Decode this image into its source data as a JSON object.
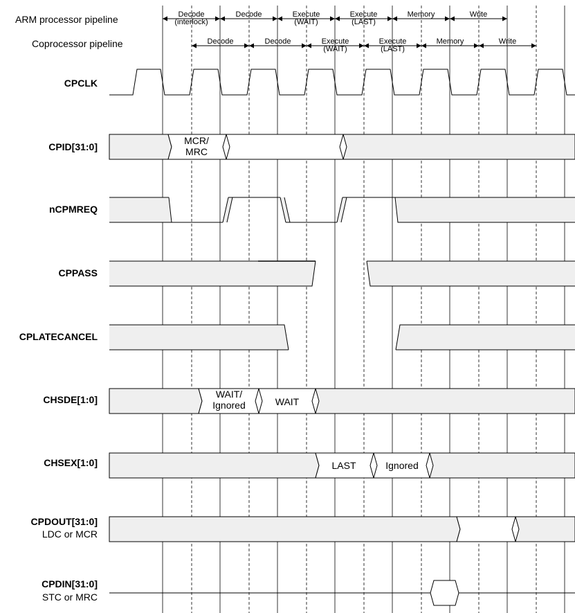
{
  "pipelines": [
    {
      "label": "ARM processor pipeline",
      "stages": [
        {
          "text": "Decode",
          "text2": "(interlock)"
        },
        {
          "text": "Decode",
          "text2": ""
        },
        {
          "text": "Execute",
          "text2": "(WAIT)"
        },
        {
          "text": "Execute",
          "text2": "(LAST)"
        },
        {
          "text": "Memory",
          "text2": ""
        },
        {
          "text": "Write",
          "text2": ""
        }
      ]
    },
    {
      "label": "Coprocessor pipeline",
      "stages": [
        {
          "text": "Decode",
          "text2": ""
        },
        {
          "text": "Decode",
          "text2": ""
        },
        {
          "text": "Execute",
          "text2": "(WAIT)"
        },
        {
          "text": "Execute",
          "text2": "(LAST)"
        },
        {
          "text": "Memory",
          "text2": ""
        },
        {
          "text": "Write",
          "text2": ""
        }
      ]
    }
  ],
  "signals": [
    {
      "name": "CPCLK",
      "sub": ""
    },
    {
      "name": "CPID[31:0]",
      "sub": ""
    },
    {
      "name": "nCPMREQ",
      "sub": ""
    },
    {
      "name": "CPPASS",
      "sub": ""
    },
    {
      "name": "CPLATECANCEL",
      "sub": ""
    },
    {
      "name": "CHSDE[1:0]",
      "sub": ""
    },
    {
      "name": "CHSEX[1:0]",
      "sub": ""
    },
    {
      "name": "CPDOUT[31:0]",
      "sub": "LDC or MCR"
    },
    {
      "name": "CPDIN[31:0]",
      "sub": "STC or MRC"
    }
  ],
  "bus_values": {
    "cpid": {
      "line1": "MCR/",
      "line2": "MRC"
    },
    "chsde": [
      {
        "line1": "WAIT/",
        "line2": "Ignored"
      },
      {
        "line1": "WAIT",
        "line2": ""
      }
    ],
    "chsex": [
      {
        "line1": "LAST",
        "line2": ""
      },
      {
        "line1": "Ignored",
        "line2": ""
      }
    ]
  },
  "colors": {
    "fill": "#efefef",
    "line": "#000000"
  }
}
